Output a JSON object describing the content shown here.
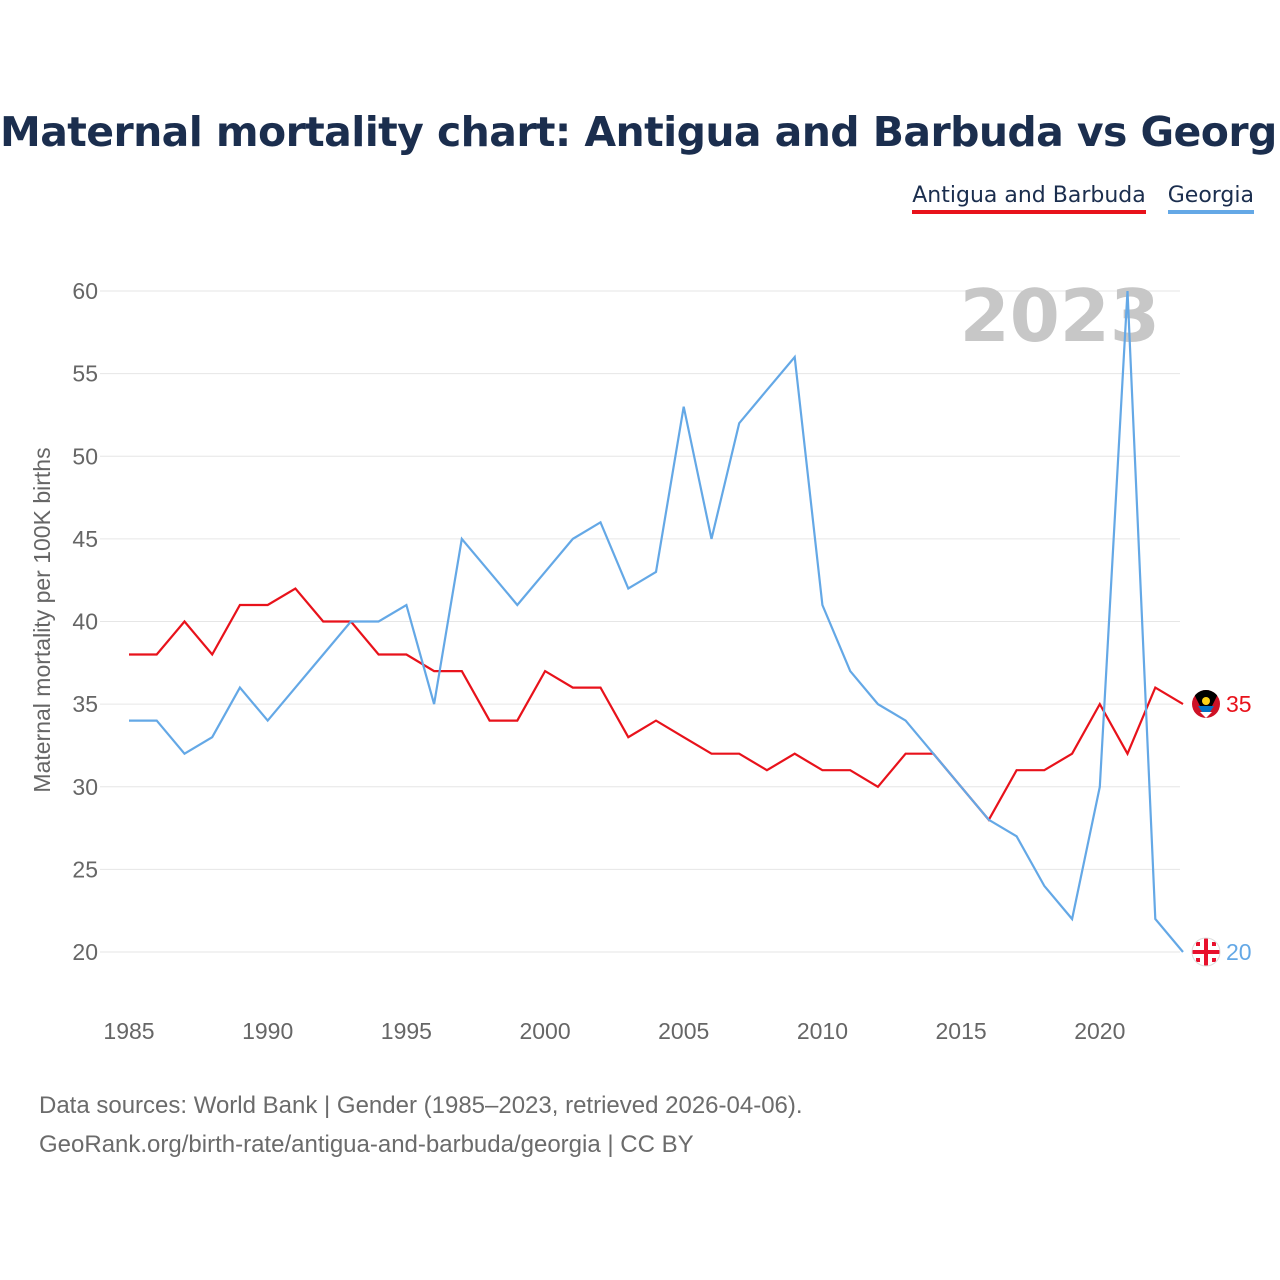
{
  "title": "Maternal mortality chart: Antigua and Barbuda vs Georgia",
  "legend": [
    {
      "label": "Antigua and Barbuda",
      "color": "#e8121b"
    },
    {
      "label": "Georgia",
      "color": "#64a8e6"
    }
  ],
  "footer": {
    "line1": "Data sources: World Bank | Gender (1985–2023, retrieved 2026-04-06).",
    "line2": "GeoRank.org/birth-rate/antigua-and-barbuda/georgia | CC BY"
  },
  "chart_data": {
    "type": "line",
    "title": "Maternal mortality chart: Antigua and Barbuda vs Georgia",
    "xlabel": "",
    "ylabel": "Maternal mortality per 100K births",
    "year_label": "2023",
    "xlim": [
      1985,
      2023
    ],
    "ylim": [
      20,
      60
    ],
    "x_ticks": [
      1985,
      1990,
      1995,
      2000,
      2005,
      2010,
      2015,
      2020
    ],
    "y_ticks": [
      20,
      25,
      30,
      35,
      40,
      45,
      50,
      55,
      60
    ],
    "grid": true,
    "legend_position": "top-right",
    "x": [
      1985,
      1986,
      1987,
      1988,
      1989,
      1990,
      1991,
      1992,
      1993,
      1994,
      1995,
      1996,
      1997,
      1998,
      1999,
      2000,
      2001,
      2002,
      2003,
      2004,
      2005,
      2006,
      2007,
      2008,
      2009,
      2010,
      2011,
      2012,
      2013,
      2014,
      2015,
      2016,
      2017,
      2018,
      2019,
      2020,
      2021,
      2022,
      2023
    ],
    "series": [
      {
        "name": "Antigua and Barbuda",
        "color": "#e8121b",
        "end_label": "35",
        "flag_icon": "antigua-and-barbuda-flag-icon",
        "values": [
          38,
          38,
          40,
          38,
          41,
          41,
          42,
          40,
          40,
          38,
          38,
          37,
          37,
          34,
          34,
          37,
          36,
          36,
          33,
          34,
          33,
          32,
          32,
          31,
          32,
          31,
          31,
          30,
          32,
          32,
          30,
          28,
          31,
          31,
          32,
          35,
          32,
          36,
          35
        ]
      },
      {
        "name": "Georgia",
        "color": "#64a8e6",
        "end_label": "20",
        "flag_icon": "georgia-flag-icon",
        "values": [
          34,
          34,
          32,
          33,
          36,
          34,
          36,
          38,
          40,
          40,
          41,
          35,
          45,
          43,
          41,
          43,
          45,
          46,
          42,
          43,
          53,
          45,
          52,
          54,
          56,
          41,
          37,
          35,
          34,
          32,
          30,
          28,
          27,
          24,
          22,
          30,
          60,
          22,
          20
        ]
      }
    ]
  }
}
